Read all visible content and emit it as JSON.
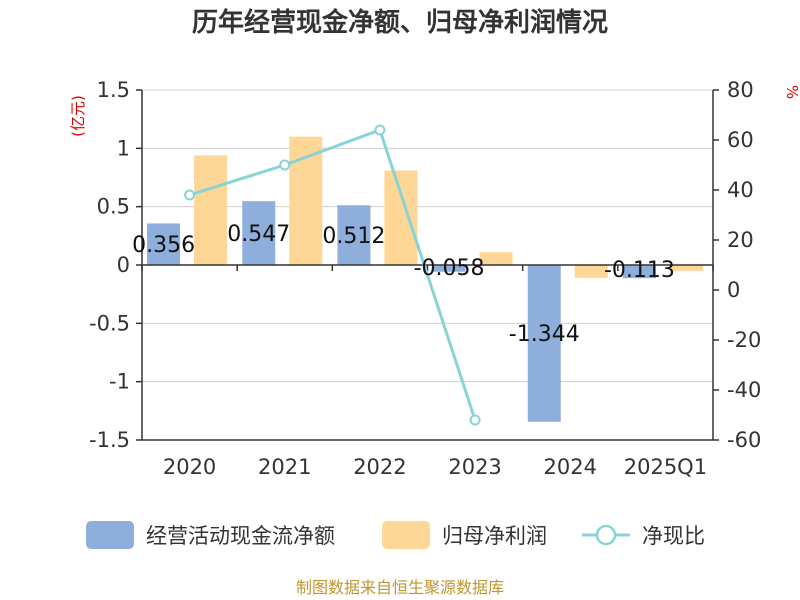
{
  "colors": {
    "bar1": "#8eaedb",
    "bar2": "#fed797",
    "line": "#88d3d6",
    "unit": "#e00000",
    "source": "#c0962d",
    "axis": "#333333",
    "grid": "#cfcfcf"
  },
  "chart_data": {
    "type": "bar",
    "title": "历年经营现金净额、归母净利润情况",
    "categories": [
      "2020",
      "2021",
      "2022",
      "2023",
      "2024",
      "2025Q1"
    ],
    "y_left": {
      "unit": "(亿元)",
      "ylim": [
        -1.5,
        1.5
      ],
      "ticks": [
        "1.5",
        "1",
        "0.5",
        "0",
        "-0.5",
        "-1",
        "-1.5"
      ]
    },
    "y_right": {
      "unit": "%",
      "ylim": [
        -60,
        80
      ],
      "ticks": [
        "80",
        "60",
        "40",
        "20",
        "0",
        "-20",
        "-40",
        "-60"
      ]
    },
    "series": [
      {
        "name": "经营活动现金流净额",
        "type": "bar",
        "axis": "left",
        "values": [
          0.356,
          0.547,
          0.512,
          -0.058,
          -1.344,
          -0.113
        ],
        "labels": [
          "0.356",
          "0.547",
          "0.512",
          "-0.058",
          "-1.344",
          "-0.113"
        ]
      },
      {
        "name": "归母净利润",
        "type": "bar",
        "axis": "left",
        "values": [
          0.94,
          1.1,
          0.81,
          0.11,
          -0.11,
          -0.05
        ]
      },
      {
        "name": "净现比",
        "type": "line",
        "axis": "right",
        "values": [
          38,
          50,
          64,
          -52,
          null,
          null
        ]
      }
    ],
    "legend": [
      "经营活动现金流净额",
      "归母净利润",
      "净现比"
    ],
    "grid": true
  },
  "footer": {
    "source": "制图数据来自恒生聚源数据库"
  }
}
